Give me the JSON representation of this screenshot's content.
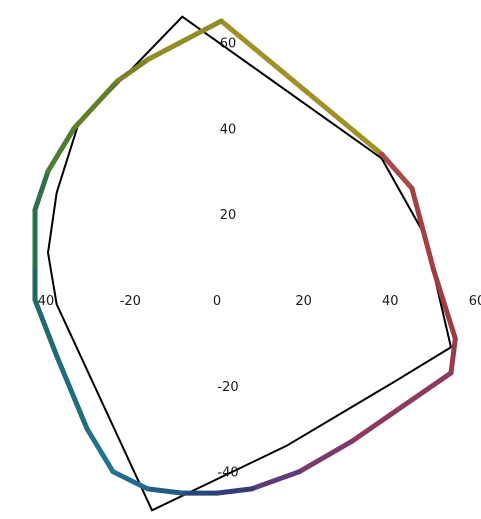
{
  "chart_data": {
    "type": "line",
    "title": "",
    "xlabel": "",
    "ylabel": "",
    "xlim": [
      -51,
      62
    ],
    "ylim": [
      -50,
      67
    ],
    "grid": false,
    "legend": "none",
    "x_ticks": [
      {
        "value": -40,
        "label": "-40"
      },
      {
        "value": -20,
        "label": "-20"
      },
      {
        "value": 0,
        "label": "0"
      },
      {
        "value": 20,
        "label": "20"
      },
      {
        "value": 40,
        "label": "40"
      },
      {
        "value": 60,
        "label": "60"
      }
    ],
    "y_ticks": [
      {
        "value": 60,
        "label": "60"
      },
      {
        "value": 40,
        "label": "40"
      },
      {
        "value": 20,
        "label": "20"
      },
      {
        "value": -20,
        "label": "-20"
      },
      {
        "value": -40,
        "label": "-40"
      }
    ],
    "series": [
      {
        "style": "thin-black-outline",
        "color": "#000000",
        "closed": true,
        "points": [
          [
            -8,
            66
          ],
          [
            38,
            33
          ],
          [
            48,
            15
          ],
          [
            54,
            -11
          ],
          [
            41,
            -19
          ],
          [
            16,
            -34
          ],
          [
            -15,
            -49
          ],
          [
            -37,
            -1
          ],
          [
            -39,
            11
          ],
          [
            -37,
            25
          ],
          [
            -32,
            41
          ]
        ]
      },
      {
        "style": "thick-colored-gradient",
        "closed": false,
        "points": [
          [
            1,
            65
          ],
          [
            38,
            34
          ],
          [
            45,
            26
          ],
          [
            50,
            7
          ],
          [
            55,
            -9
          ],
          [
            54,
            -17
          ],
          [
            31,
            -33
          ],
          [
            19,
            -40
          ],
          [
            8,
            -44
          ],
          [
            0,
            -45
          ],
          [
            -8,
            -45
          ],
          [
            -16,
            -44
          ],
          [
            -24,
            -40
          ],
          [
            -30,
            -30
          ],
          [
            -37,
            -13
          ],
          [
            -42,
            0
          ],
          [
            -42,
            8
          ],
          [
            -42,
            21
          ],
          [
            -39,
            30
          ],
          [
            -33,
            40
          ],
          [
            -23,
            51
          ],
          [
            -16,
            56
          ]
        ],
        "colors": [
          "#9f9126",
          "#a94949",
          "#a54040",
          "#9e3c40",
          "#983c4c",
          "#8e3a60",
          "#7a3a6a",
          "#5d3a78",
          "#353a78",
          "#26457a",
          "#235d84",
          "#226c8c",
          "#22738c",
          "#206d80",
          "#1f6a70",
          "#1f6a60",
          "#24714f",
          "#2d7146",
          "#4d7d33",
          "#627e2a",
          "#7d8128"
        ],
        "closing_segment_color": "#8f8d26"
      }
    ]
  }
}
